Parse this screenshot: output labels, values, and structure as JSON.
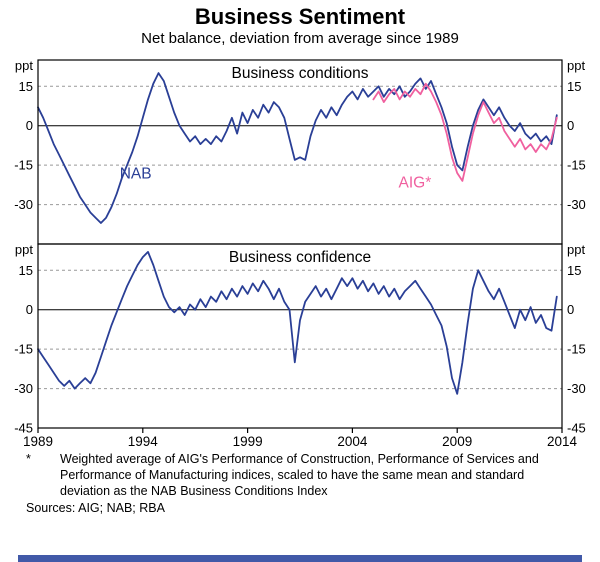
{
  "page": {
    "title": "Business Sentiment",
    "subtitle": "Net balance, deviation from average since 1989",
    "footnote_marker": "*",
    "footnote_text": "Weighted average of AIG's Performance of Construction, Performance of Services and Performance of Manufacturing indices, scaled to have the same mean and standard deviation as the NAB Business Conditions Index",
    "sources": "Sources: AIG; NAB; RBA"
  },
  "colors": {
    "nab_line": "#2a3f96",
    "aig_line": "#f0609f",
    "grid": "#999999",
    "axis": "#000000",
    "footer_bar": "#4159a8"
  },
  "chart_data": {
    "type": "line",
    "title": "Business Sentiment",
    "subtitle": "Net balance, deviation from average since 1989",
    "x_range": [
      1989,
      2014
    ],
    "x_ticks": [
      1989,
      1994,
      1999,
      2004,
      2009,
      2014
    ],
    "grid": "dashed horizontal at 15-unit intervals, solid line at 0",
    "legend_position": "inline labels on lines",
    "panels": [
      {
        "title": "Business conditions",
        "unit_label": "ppt",
        "y_range": [
          -45,
          25
        ],
        "y_ticks": [
          15,
          0,
          -15,
          -30
        ],
        "series": [
          {
            "name": "NAB",
            "color": "#2a3f96",
            "label": {
              "text": "NAB",
              "x": 1992.9,
              "y": -20
            },
            "x_start": 1989,
            "x_step": 0.25,
            "values": [
              7,
              3,
              -2,
              -7,
              -11,
              -15,
              -19,
              -23,
              -27,
              -30,
              -33,
              -35,
              -37,
              -35,
              -31,
              -26,
              -20,
              -15,
              -10,
              -4,
              3,
              10,
              16,
              20,
              17,
              11,
              5,
              0,
              -3,
              -6,
              -4,
              -7,
              -5,
              -7,
              -4,
              -6,
              -2,
              3,
              -3,
              5,
              1,
              6,
              3,
              8,
              5,
              9,
              7,
              3,
              -5,
              -13,
              -12,
              -13,
              -4,
              2,
              6,
              3,
              7,
              4,
              8,
              11,
              13,
              10,
              14,
              11,
              13,
              15,
              11,
              14,
              12,
              15,
              11,
              13,
              16,
              18,
              14,
              17,
              12,
              7,
              1,
              -8,
              -15,
              -17,
              -8,
              0,
              6,
              10,
              7,
              4,
              7,
              3,
              0,
              -2,
              1,
              -3,
              -5,
              -3,
              -6,
              -4,
              -7,
              4
            ]
          },
          {
            "name": "AIG*",
            "color": "#f0609f",
            "label": {
              "text": "AIG*",
              "x": 2006.2,
              "y": -23.5
            },
            "x_start": 2005,
            "x_step": 0.25,
            "values": [
              10,
              13,
              9,
              12,
              14,
              10,
              13,
              11,
              14,
              12,
              16,
              13,
              9,
              4,
              -3,
              -12,
              -18,
              -21,
              -12,
              -3,
              4,
              9,
              5,
              1,
              3,
              -2,
              -5,
              -8,
              -5,
              -9,
              -7,
              -10,
              -7,
              -9,
              -5,
              3
            ]
          }
        ]
      },
      {
        "title": "Business confidence",
        "unit_label": "ppt",
        "y_range": [
          -45,
          25
        ],
        "y_ticks": [
          15,
          0,
          -15,
          -30,
          -45
        ],
        "series": [
          {
            "name": "NAB",
            "color": "#2a3f96",
            "x_start": 1989,
            "x_step": 0.25,
            "values": [
              -15,
              -18,
              -21,
              -24,
              -27,
              -29,
              -27,
              -30,
              -28,
              -26,
              -28,
              -24,
              -18,
              -12,
              -6,
              -1,
              4,
              9,
              13,
              17,
              20,
              22,
              17,
              11,
              5,
              1,
              -1,
              1,
              -2,
              2,
              0,
              4,
              1,
              5,
              3,
              7,
              4,
              8,
              5,
              9,
              6,
              10,
              7,
              11,
              8,
              4,
              8,
              3,
              0,
              -20,
              -4,
              3,
              6,
              9,
              5,
              8,
              4,
              8,
              12,
              9,
              12,
              8,
              11,
              7,
              10,
              6,
              9,
              5,
              8,
              4,
              7,
              9,
              11,
              8,
              5,
              2,
              -2,
              -6,
              -14,
              -26,
              -32,
              -20,
              -5,
              8,
              15,
              11,
              7,
              4,
              8,
              3,
              -2,
              -7,
              0,
              -4,
              1,
              -5,
              -2,
              -7,
              -8,
              5
            ]
          }
        ]
      }
    ]
  }
}
